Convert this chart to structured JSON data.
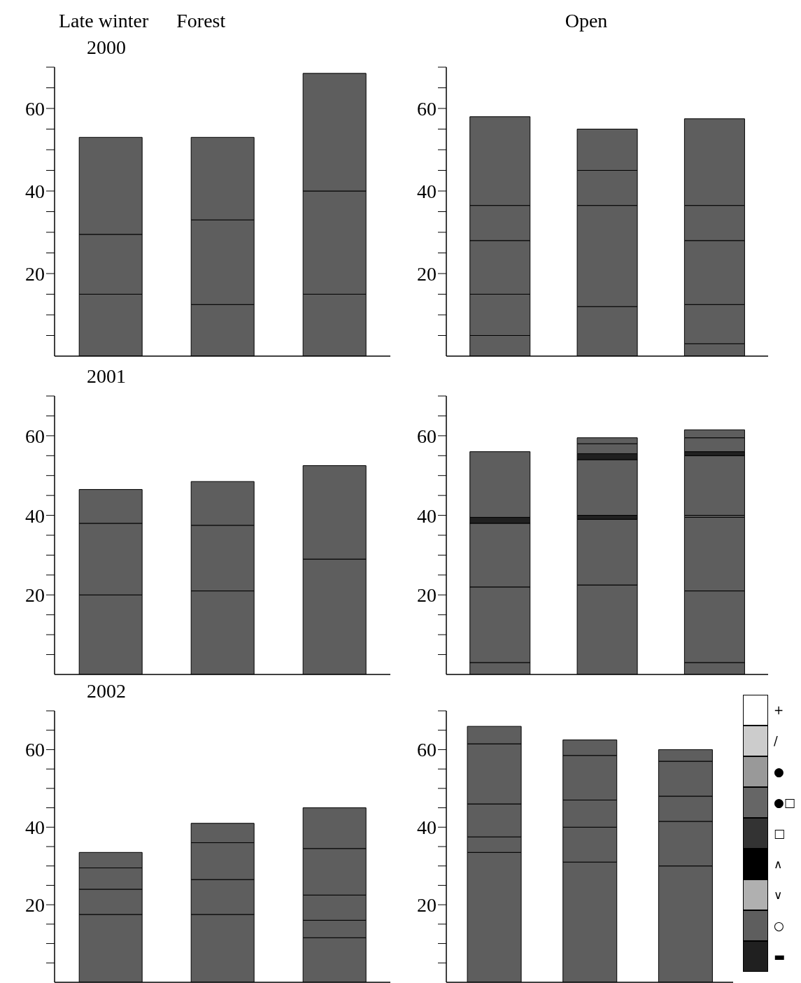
{
  "chart_data": [
    {
      "type": "bar",
      "title": "2000",
      "annotations": [
        "Late winter",
        "Forest"
      ],
      "categories": [
        null,
        null,
        null
      ],
      "stacked": true,
      "tick_labels": "y",
      "ylim": [
        0,
        70
      ],
      "yticks": [
        {
          "value": 5,
          "label": null
        },
        {
          "value": 10,
          "label": null
        },
        {
          "value": 15,
          "label": null
        },
        20,
        {
          "value": 25,
          "label": null
        },
        {
          "value": 30,
          "label": null
        },
        {
          "value": 35,
          "label": null
        },
        40,
        {
          "value": 45,
          "label": null
        },
        {
          "value": 50,
          "label": null
        },
        {
          "value": 55,
          "label": null
        },
        60,
        {
          "value": 65,
          "label": null
        },
        {
          "value": 70,
          "label": null
        }
      ],
      "series": [
        {
          "values": [
            15,
            12.5,
            15
          ],
          "colors": [
            "#5e5e5e",
            "#5e5e5e",
            "#5e5e5e"
          ]
        },
        {
          "values": [
            14.5,
            20.5,
            25
          ],
          "colors": [
            "#5e5e5e",
            "#5e5e5e",
            "#5e5e5e"
          ]
        },
        {
          "values": [
            23.5,
            20,
            28.5
          ],
          "colors": [
            "#5e5e5e",
            "#5e5e5e",
            "#5e5e5e"
          ]
        }
      ]
    },
    {
      "type": "bar",
      "annotations": [
        "Open"
      ],
      "categories": [
        null,
        null,
        null
      ],
      "stacked": true,
      "tick_labels": "y",
      "ylim": [
        0,
        70
      ],
      "yticks": [
        {
          "value": 5,
          "label": null
        },
        {
          "value": 10,
          "label": null
        },
        {
          "value": 15,
          "label": null
        },
        20,
        {
          "value": 25,
          "label": null
        },
        {
          "value": 30,
          "label": null
        },
        {
          "value": 35,
          "label": null
        },
        40,
        {
          "value": 45,
          "label": null
        },
        {
          "value": 50,
          "label": null
        },
        {
          "value": 55,
          "label": null
        },
        60,
        {
          "value": 65,
          "label": null
        },
        {
          "value": 70,
          "label": null
        }
      ],
      "series": [
        {
          "values": [
            5,
            12,
            3
          ],
          "colors": [
            "#5e5e5e",
            "#5e5e5e",
            "#5e5e5e"
          ]
        },
        {
          "values": [
            10,
            24.5,
            9.5
          ],
          "colors": [
            "#5e5e5e",
            "#5e5e5e",
            "#5e5e5e"
          ]
        },
        {
          "values": [
            13,
            8.5,
            15.5
          ],
          "colors": [
            "#5e5e5e",
            "#5e5e5e",
            "#5e5e5e"
          ]
        },
        {
          "values": [
            8.5,
            10,
            8.5
          ],
          "colors": [
            "#5e5e5e",
            "#5e5e5e",
            "#5e5e5e"
          ]
        },
        {
          "values": [
            21.5,
            null,
            21
          ],
          "colors": [
            "#5e5e5e",
            null,
            "#5e5e5e"
          ]
        }
      ]
    },
    {
      "type": "bar",
      "title": "2001",
      "categories": [
        null,
        null,
        null
      ],
      "stacked": true,
      "tick_labels": "y",
      "ylim": [
        0,
        70
      ],
      "yticks": [
        {
          "value": 5,
          "label": null
        },
        {
          "value": 10,
          "label": null
        },
        {
          "value": 15,
          "label": null
        },
        20,
        {
          "value": 25,
          "label": null
        },
        {
          "value": 30,
          "label": null
        },
        {
          "value": 35,
          "label": null
        },
        40,
        {
          "value": 45,
          "label": null
        },
        {
          "value": 50,
          "label": null
        },
        {
          "value": 55,
          "label": null
        },
        60,
        {
          "value": 65,
          "label": null
        },
        {
          "value": 70,
          "label": null
        }
      ],
      "series": [
        {
          "values": [
            20,
            21,
            29
          ],
          "colors": [
            "#5e5e5e",
            "#5e5e5e",
            "#5e5e5e"
          ]
        },
        {
          "values": [
            18,
            16.5,
            23.5
          ],
          "colors": [
            "#5e5e5e",
            "#5e5e5e",
            "#5e5e5e"
          ]
        },
        {
          "values": [
            8.5,
            11,
            null
          ],
          "colors": [
            "#5e5e5e",
            "#5e5e5e",
            null
          ]
        }
      ]
    },
    {
      "type": "bar",
      "categories": [
        null,
        null,
        null
      ],
      "stacked": true,
      "tick_labels": "y",
      "ylim": [
        0,
        70
      ],
      "yticks": [
        {
          "value": 5,
          "label": null
        },
        {
          "value": 10,
          "label": null
        },
        {
          "value": 15,
          "label": null
        },
        20,
        {
          "value": 25,
          "label": null
        },
        {
          "value": 30,
          "label": null
        },
        {
          "value": 35,
          "label": null
        },
        40,
        {
          "value": 45,
          "label": null
        },
        {
          "value": 50,
          "label": null
        },
        {
          "value": 55,
          "label": null
        },
        60,
        {
          "value": 65,
          "label": null
        },
        {
          "value": 70,
          "label": null
        }
      ],
      "series": [
        {
          "values": [
            3,
            22.5,
            3
          ],
          "colors": [
            "#5e5e5e",
            "#5e5e5e",
            "#5e5e5e"
          ]
        },
        {
          "values": [
            19,
            16.5,
            18
          ],
          "colors": [
            "#5e5e5e",
            "#5e5e5e",
            "#5e5e5e"
          ]
        },
        {
          "values": [
            16,
            1,
            18.5
          ],
          "colors": [
            "#5e5e5e",
            "#202020",
            "#5e5e5e"
          ]
        },
        {
          "values": [
            1.5,
            14,
            0.5
          ],
          "colors": [
            "#202020",
            "#5e5e5e",
            "#5e5e5e"
          ]
        },
        {
          "values": [
            16.5,
            1.5,
            15
          ],
          "colors": [
            "#5e5e5e",
            "#202020",
            "#5e5e5e"
          ]
        },
        {
          "values": [
            null,
            2.5,
            1
          ],
          "colors": [
            null,
            "#5e5e5e",
            "#202020"
          ]
        },
        {
          "values": [
            null,
            1.5,
            3.5
          ],
          "colors": [
            null,
            "#5e5e5e",
            "#5e5e5e"
          ]
        },
        {
          "values": [
            null,
            null,
            2
          ],
          "colors": [
            null,
            null,
            "#5e5e5e"
          ]
        }
      ]
    },
    {
      "type": "bar",
      "title": "2002",
      "categories": [
        null,
        null,
        null
      ],
      "stacked": true,
      "tick_labels": "y",
      "ylim": [
        0,
        70
      ],
      "yticks": [
        {
          "value": 5,
          "label": null
        },
        {
          "value": 10,
          "label": null
        },
        {
          "value": 15,
          "label": null
        },
        20,
        {
          "value": 25,
          "label": null
        },
        {
          "value": 30,
          "label": null
        },
        {
          "value": 35,
          "label": null
        },
        40,
        {
          "value": 45,
          "label": null
        },
        {
          "value": 50,
          "label": null
        },
        {
          "value": 55,
          "label": null
        },
        60,
        {
          "value": 65,
          "label": null
        },
        {
          "value": 70,
          "label": null
        }
      ],
      "series": [
        {
          "values": [
            17.5,
            17.5,
            11.5
          ],
          "colors": [
            "#5e5e5e",
            "#5e5e5e",
            "#5e5e5e"
          ]
        },
        {
          "values": [
            6.5,
            9,
            4.5
          ],
          "colors": [
            "#5e5e5e",
            "#5e5e5e",
            "#5e5e5e"
          ]
        },
        {
          "values": [
            5.5,
            9.5,
            6.5
          ],
          "colors": [
            "#5e5e5e",
            "#5e5e5e",
            "#5e5e5e"
          ]
        },
        {
          "values": [
            4,
            5,
            12
          ],
          "colors": [
            "#5e5e5e",
            "#5e5e5e",
            "#5e5e5e"
          ]
        },
        {
          "values": [
            null,
            null,
            10.5
          ],
          "colors": [
            null,
            null,
            "#5e5e5e"
          ]
        }
      ]
    },
    {
      "type": "bar",
      "categories": [
        null,
        null,
        null
      ],
      "stacked": true,
      "tick_labels": "y",
      "ylim": [
        0,
        70
      ],
      "yticks": [
        {
          "value": 5,
          "label": null
        },
        {
          "value": 10,
          "label": null
        },
        {
          "value": 15,
          "label": null
        },
        20,
        {
          "value": 25,
          "label": null
        },
        {
          "value": 30,
          "label": null
        },
        {
          "value": 35,
          "label": null
        },
        40,
        {
          "value": 45,
          "label": null
        },
        {
          "value": 50,
          "label": null
        },
        {
          "value": 55,
          "label": null
        },
        60,
        {
          "value": 65,
          "label": null
        },
        {
          "value": 70,
          "label": null
        }
      ],
      "series": [
        {
          "values": [
            33.5,
            31,
            30
          ],
          "colors": [
            "#5e5e5e",
            "#5e5e5e",
            "#5e5e5e"
          ]
        },
        {
          "values": [
            4,
            9,
            11.5
          ],
          "colors": [
            "#5e5e5e",
            "#5e5e5e",
            "#5e5e5e"
          ]
        },
        {
          "values": [
            8.5,
            7,
            6.5
          ],
          "colors": [
            "#5e5e5e",
            "#5e5e5e",
            "#5e5e5e"
          ]
        },
        {
          "values": [
            15.5,
            11.5,
            9
          ],
          "colors": [
            "#5e5e5e",
            "#5e5e5e",
            "#5e5e5e"
          ]
        },
        {
          "values": [
            4.5,
            4,
            3
          ],
          "colors": [
            "#5e5e5e",
            "#5e5e5e",
            "#5e5e5e"
          ]
        }
      ]
    },
    {
      "type": "other",
      "categories": [
        "+",
        "/",
        "●",
        "●□",
        "□",
        "∧",
        "∨",
        "○",
        "▬"
      ],
      "colors": [
        "#ffffff",
        "#cccccc",
        "#999999",
        "#666666",
        "#333333",
        "#000000",
        "#b0b0b0",
        "#5e5e5e",
        "#202020"
      ]
    }
  ]
}
